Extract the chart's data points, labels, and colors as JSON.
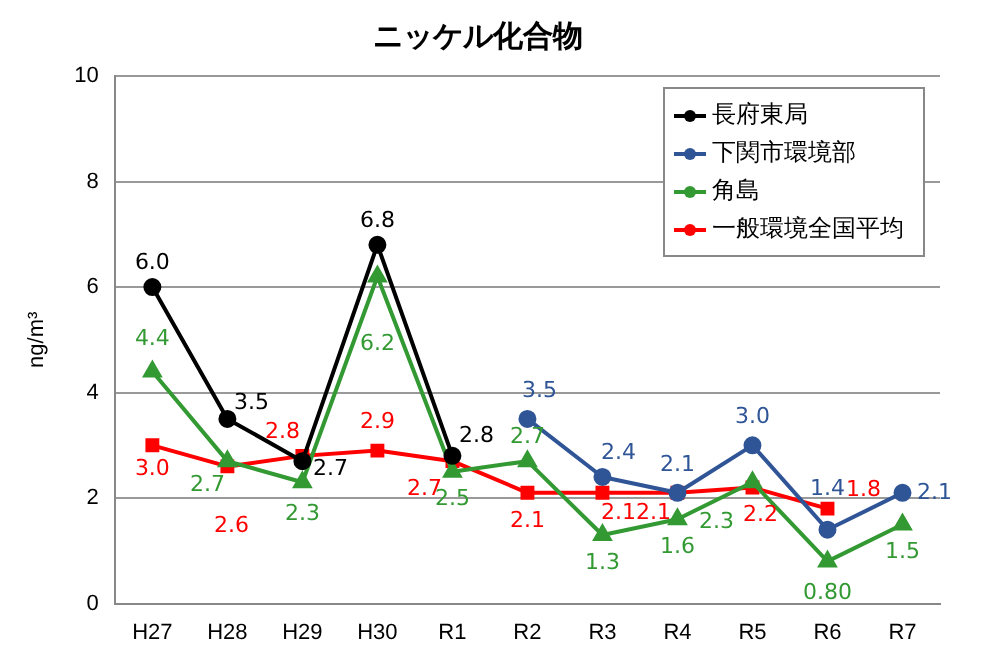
{
  "chart_data": {
    "type": "line",
    "title": "ニッケル化合物",
    "ylabel": "ng/m³",
    "categories": [
      "H27",
      "H28",
      "H29",
      "H30",
      "R1",
      "R2",
      "R3",
      "R4",
      "R5",
      "R6",
      "R7"
    ],
    "series": [
      {
        "name": "長府東局",
        "color": "#000000",
        "marker": "circle",
        "values": [
          6.0,
          3.5,
          2.7,
          6.8,
          2.8,
          null,
          null,
          null,
          null,
          null,
          null
        ],
        "value_labels": [
          "6.0",
          "3.5",
          "2.7",
          "6.8",
          "2.8",
          null,
          null,
          null,
          null,
          null,
          null
        ]
      },
      {
        "name": "下関市環境部",
        "color": "#2f5597",
        "marker": "circle",
        "values": [
          null,
          null,
          null,
          null,
          null,
          3.5,
          2.4,
          2.1,
          3.0,
          1.4,
          2.1
        ],
        "value_labels": [
          null,
          null,
          null,
          null,
          null,
          "3.5",
          "2.4",
          "2.1",
          "3.0",
          "1.4",
          "2.1"
        ]
      },
      {
        "name": "角島",
        "color": "#339933",
        "marker": "triangle",
        "values": [
          4.4,
          2.7,
          2.3,
          6.2,
          2.5,
          2.7,
          1.3,
          1.6,
          2.3,
          0.8,
          1.5
        ],
        "value_labels": [
          "4.4",
          "2.7",
          "2.3",
          "6.2",
          "2.5",
          "2.7",
          "1.3",
          "1.6",
          "2.3",
          "0.80",
          "1.5"
        ]
      },
      {
        "name": "一般環境全国平均",
        "color": "#ff0000",
        "marker": "square",
        "values": [
          3.0,
          2.6,
          2.8,
          2.9,
          2.7,
          2.1,
          2.1,
          2.1,
          2.2,
          1.8,
          null
        ],
        "value_labels": [
          "3.0",
          "2.6",
          "2.8",
          "2.9",
          "2.7",
          "2.1",
          "2.1",
          "2.1",
          "2.2",
          "1.8",
          null
        ]
      }
    ],
    "ylim": [
      0,
      10
    ],
    "yticks": [
      0,
      2,
      4,
      6,
      8,
      10
    ],
    "grid": "y",
    "legend": "top right",
    "line_style": "solid"
  }
}
